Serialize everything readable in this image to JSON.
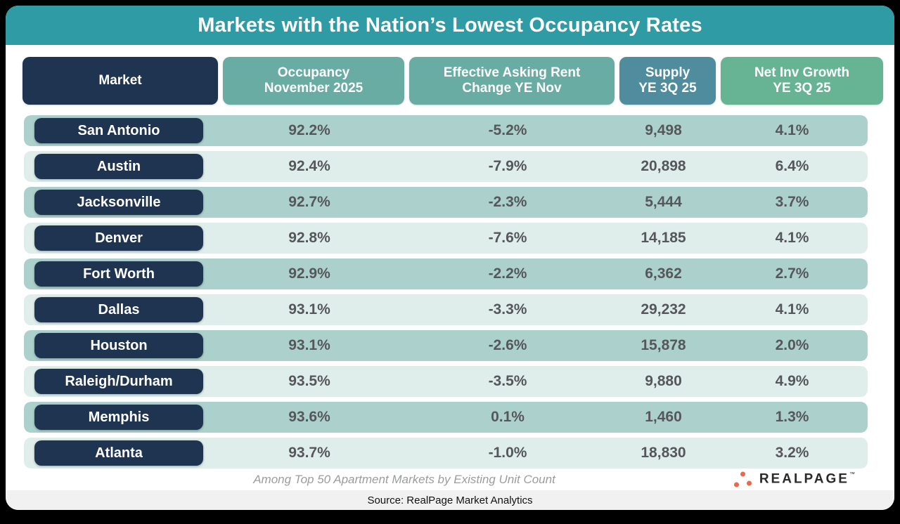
{
  "title": "Markets with the Nation’s Lowest Occupancy Rates",
  "table": {
    "headers": [
      {
        "line1": "Market",
        "line2": ""
      },
      {
        "line1": "Occupancy",
        "line2": "November 2025"
      },
      {
        "line1": "Effective Asking Rent",
        "line2": "Change YE Nov"
      },
      {
        "line1": "Supply",
        "line2": "YE 3Q 25"
      },
      {
        "line1": "Net Inv Growth",
        "line2": "YE 3Q 25"
      }
    ],
    "rows": [
      {
        "market": "San Antonio",
        "occupancy": "92.2%",
        "rent_change": "-5.2%",
        "supply": "9,498",
        "net_inv_growth": "4.1%"
      },
      {
        "market": "Austin",
        "occupancy": "92.4%",
        "rent_change": "-7.9%",
        "supply": "20,898",
        "net_inv_growth": "6.4%"
      },
      {
        "market": "Jacksonville",
        "occupancy": "92.7%",
        "rent_change": "-2.3%",
        "supply": "5,444",
        "net_inv_growth": "3.7%"
      },
      {
        "market": "Denver",
        "occupancy": "92.8%",
        "rent_change": "-7.6%",
        "supply": "14,185",
        "net_inv_growth": "4.1%"
      },
      {
        "market": "Fort Worth",
        "occupancy": "92.9%",
        "rent_change": "-2.2%",
        "supply": "6,362",
        "net_inv_growth": "2.7%"
      },
      {
        "market": "Dallas",
        "occupancy": "93.1%",
        "rent_change": "-3.3%",
        "supply": "29,232",
        "net_inv_growth": "4.1%"
      },
      {
        "market": "Houston",
        "occupancy": "93.1%",
        "rent_change": "-2.6%",
        "supply": "15,878",
        "net_inv_growth": "2.0%"
      },
      {
        "market": "Raleigh/Durham",
        "occupancy": "93.5%",
        "rent_change": "-3.5%",
        "supply": "9,880",
        "net_inv_growth": "4.9%"
      },
      {
        "market": "Memphis",
        "occupancy": "93.6%",
        "rent_change": "0.1%",
        "supply": "1,460",
        "net_inv_growth": "1.3%"
      },
      {
        "market": "Atlanta",
        "occupancy": "93.7%",
        "rent_change": "-1.0%",
        "supply": "18,830",
        "net_inv_growth": "3.2%"
      }
    ]
  },
  "footer": {
    "note": "Among Top 50 Apartment Markets by Existing Unit Count",
    "logo_text": "REALPAGE",
    "logo_trademark": "™",
    "source": "Source: RealPage Market Analytics"
  },
  "colors": {
    "teal": "#2f9ca5",
    "navy": "#1f3450",
    "header_green": "#69aca3",
    "header_blue": "#4e8c9e",
    "header_lightgreen": "#66b493",
    "row_dark": "#acd1cd",
    "row_light": "#dfeeeb",
    "value_gray": "#55575a",
    "logo_orange": "#e96a4b"
  },
  "chart_data": {
    "type": "table",
    "title": "Markets with the Nation’s Lowest Occupancy Rates",
    "columns": [
      "Market",
      "Occupancy November 2025",
      "Effective Asking Rent Change YE Nov",
      "Supply YE 3Q 25",
      "Net Inv Growth YE 3Q 25"
    ],
    "rows": [
      [
        "San Antonio",
        "92.2%",
        "-5.2%",
        "9,498",
        "4.1%"
      ],
      [
        "Austin",
        "92.4%",
        "-7.9%",
        "20,898",
        "6.4%"
      ],
      [
        "Jacksonville",
        "92.7%",
        "-2.3%",
        "5,444",
        "3.7%"
      ],
      [
        "Denver",
        "92.8%",
        "-7.6%",
        "14,185",
        "4.1%"
      ],
      [
        "Fort Worth",
        "92.9%",
        "-2.2%",
        "6,362",
        "2.7%"
      ],
      [
        "Dallas",
        "93.1%",
        "-3.3%",
        "29,232",
        "4.1%"
      ],
      [
        "Houston",
        "93.1%",
        "-2.6%",
        "15,878",
        "2.0%"
      ],
      [
        "Raleigh/Durham",
        "93.5%",
        "-3.5%",
        "9,880",
        "4.9%"
      ],
      [
        "Memphis",
        "93.6%",
        "0.1%",
        "1,460",
        "1.3%"
      ],
      [
        "Atlanta",
        "93.7%",
        "-1.0%",
        "18,830",
        "3.2%"
      ]
    ],
    "note": "Among Top 50 Apartment Markets by Existing Unit Count",
    "source": "Source: RealPage Market Analytics"
  }
}
